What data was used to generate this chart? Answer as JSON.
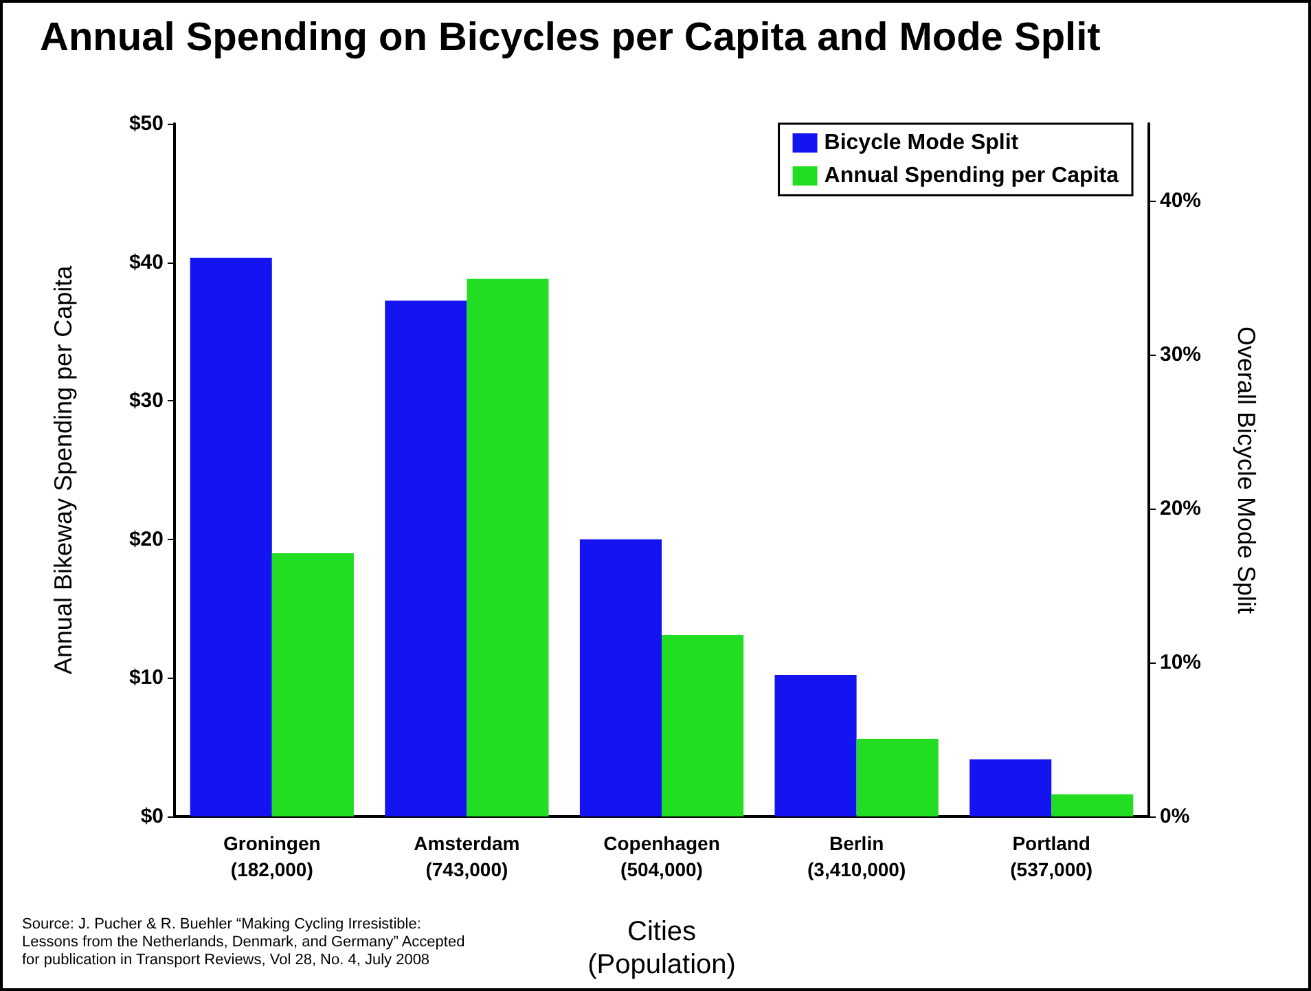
{
  "chart_data": {
    "type": "bar",
    "title": "Annual Spending on Bicycles per Capita and Mode Split",
    "xlabel": "Cities\n(Population)",
    "ylabel": "Annual Bikeway Spending per Capita",
    "y2label": "Overall Bicycle Mode Split",
    "categories": [
      "Groningen\n(182,000)",
      "Amsterdam\n(743,000)",
      "Copenhagen\n(504,000)",
      "Berlin\n(3,410,000)",
      "Portland\n(537,000)"
    ],
    "series": [
      {
        "name": "Bicycle Mode Split",
        "color": "#1414f0",
        "axis": "y2",
        "values": [
          36.3,
          33.5,
          18,
          9.2,
          3.7
        ]
      },
      {
        "name": "Annual Spending per Capita",
        "color": "#22dd22",
        "values": [
          19,
          38.8,
          13.1,
          5.6,
          1.6
        ]
      }
    ],
    "ylim": [
      0,
      50
    ],
    "yticks": [
      {
        "value": 0,
        "label": "$0"
      },
      {
        "value": 10,
        "label": "$10"
      },
      {
        "value": 20,
        "label": "$20"
      },
      {
        "value": 30,
        "label": "$30"
      },
      {
        "value": 40,
        "label": "$40"
      },
      {
        "value": 50,
        "label": "$50"
      }
    ],
    "y2lim": [
      0,
      45
    ],
    "y2ticks": [
      {
        "value": 0,
        "label": "0%"
      },
      {
        "value": 10,
        "label": "10%"
      },
      {
        "value": 20,
        "label": "20%"
      },
      {
        "value": 30,
        "label": "30%"
      },
      {
        "value": 40,
        "label": "40%"
      }
    ],
    "grid": false,
    "legend": "top right",
    "annotations": [
      "Source: J. Pucher & R. Buehler “Making Cycling Irresistible:\nLessons from the Netherlands, Denmark, and Germany” Accepted\nfor publication in Transport Reviews, Vol 28, No. 4, July 2008"
    ]
  }
}
